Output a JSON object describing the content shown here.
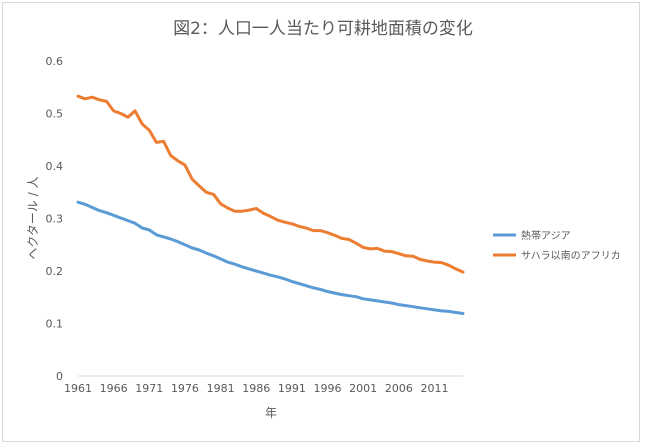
{
  "chart_data": {
    "type": "line",
    "title": "図2：人口一人当たり可耕地面積の変化",
    "xlabel": "年",
    "ylabel": "ヘクタール / 人",
    "ylim": [
      0,
      0.6
    ],
    "yticks": [
      "0",
      "0.1",
      "0.2",
      "0.3",
      "0.4",
      "0.5",
      "0.6"
    ],
    "xticks": [
      "1961",
      "1966",
      "1971",
      "1976",
      "1981",
      "1986",
      "1991",
      "1996",
      "2001",
      "2006",
      "2011"
    ],
    "x": [
      1961,
      1962,
      1963,
      1964,
      1965,
      1966,
      1967,
      1968,
      1969,
      1970,
      1971,
      1972,
      1973,
      1974,
      1975,
      1976,
      1977,
      1978,
      1979,
      1980,
      1981,
      1982,
      1983,
      1984,
      1985,
      1986,
      1987,
      1988,
      1989,
      1990,
      1991,
      1992,
      1993,
      1994,
      1995,
      1996,
      1997,
      1998,
      1999,
      2000,
      2001,
      2002,
      2003,
      2004,
      2005,
      2006,
      2007,
      2008,
      2009,
      2010,
      2011,
      2012,
      2013,
      2014,
      2015
    ],
    "grid": false,
    "legend_position": "right",
    "series": [
      {
        "name": "熱帯アジア",
        "color": "#5b9bd5",
        "values": [
          0.331,
          0.327,
          0.321,
          0.315,
          0.311,
          0.306,
          0.301,
          0.296,
          0.291,
          0.282,
          0.278,
          0.269,
          0.265,
          0.261,
          0.256,
          0.25,
          0.244,
          0.24,
          0.234,
          0.229,
          0.223,
          0.217,
          0.213,
          0.208,
          0.204,
          0.2,
          0.196,
          0.192,
          0.189,
          0.185,
          0.18,
          0.176,
          0.172,
          0.168,
          0.165,
          0.161,
          0.158,
          0.155,
          0.153,
          0.151,
          0.147,
          0.145,
          0.143,
          0.141,
          0.139,
          0.136,
          0.134,
          0.132,
          0.13,
          0.128,
          0.126,
          0.124,
          0.123,
          0.121,
          0.119
        ]
      },
      {
        "name": "サハラ以南のアフリカ",
        "color": "#ed7d31",
        "values": [
          0.533,
          0.528,
          0.531,
          0.526,
          0.523,
          0.505,
          0.5,
          0.493,
          0.505,
          0.48,
          0.468,
          0.445,
          0.447,
          0.42,
          0.41,
          0.402,
          0.375,
          0.362,
          0.35,
          0.346,
          0.328,
          0.32,
          0.314,
          0.314,
          0.316,
          0.319,
          0.31,
          0.304,
          0.297,
          0.293,
          0.29,
          0.285,
          0.282,
          0.277,
          0.277,
          0.273,
          0.268,
          0.262,
          0.26,
          0.253,
          0.245,
          0.242,
          0.243,
          0.238,
          0.237,
          0.233,
          0.229,
          0.228,
          0.222,
          0.219,
          0.217,
          0.216,
          0.211,
          0.204,
          0.198
        ]
      }
    ]
  }
}
